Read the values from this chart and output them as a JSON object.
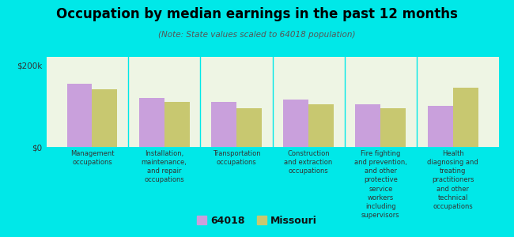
{
  "title": "Occupation by median earnings in the past 12 months",
  "subtitle": "(Note: State values scaled to 64018 population)",
  "categories": [
    "Management\noccupations",
    "Installation,\nmaintenance,\nand repair\noccupations",
    "Transportation\noccupations",
    "Construction\nand extraction\noccupations",
    "Fire fighting\nand prevention,\nand other\nprotective\nservice\nworkers\nincluding\nsupervisors",
    "Health\ndiagnosing and\ntreating\npractitioners\nand other\ntechnical\noccupations"
  ],
  "values_64018": [
    155000,
    120000,
    110000,
    115000,
    105000,
    100000
  ],
  "values_missouri": [
    140000,
    110000,
    95000,
    105000,
    95000,
    145000
  ],
  "color_64018": "#c9a0dc",
  "color_missouri": "#c8c870",
  "ylim": [
    0,
    220000
  ],
  "yticks": [
    0,
    200000
  ],
  "ytick_labels": [
    "$0",
    "$200k"
  ],
  "bg_color": "#00e8e8",
  "plot_bg": "#eef5e4",
  "legend_label_64018": "64018",
  "legend_label_missouri": "Missouri",
  "bar_width": 0.35
}
